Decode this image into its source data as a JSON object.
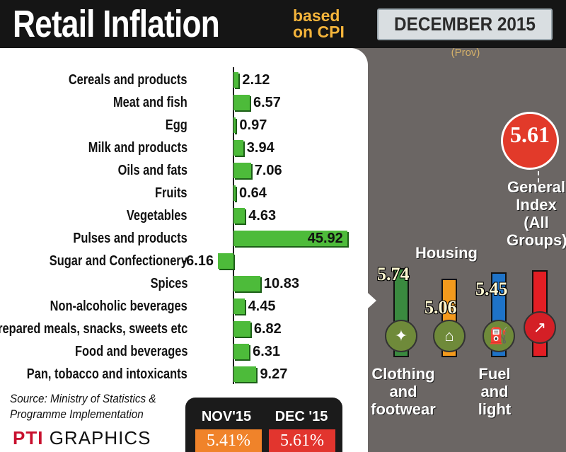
{
  "header": {
    "title": "Retail Inflation",
    "subtitle": "based\non CPI",
    "date": "DECEMBER 2015",
    "prov": "(Prov)"
  },
  "chart_data": [
    {
      "type": "bar",
      "orientation": "horizontal",
      "categories": [
        "Cereals and products",
        "Meat and fish",
        "Egg",
        "Milk and products",
        "Oils and fats",
        "Fruits",
        "Vegetables",
        "Pulses and products",
        "Sugar and Confectionery",
        "Spices",
        "Non-alcoholic beverages",
        "Prepared meals, snacks, sweets etc",
        "Food and beverages",
        "Pan, tobacco and intoxicants"
      ],
      "values": [
        2.12,
        6.57,
        0.97,
        3.94,
        7.06,
        0.64,
        4.63,
        45.92,
        -6.16,
        10.83,
        4.45,
        6.82,
        6.31,
        9.27
      ],
      "value_labels": [
        "2.12",
        "6.57",
        "0.97",
        "3.94",
        "7.06",
        "0.64",
        "4.63",
        "45.92",
        "-6.16",
        "10.83",
        "4.45",
        "6.82",
        "6.31",
        "9.27"
      ],
      "bar_color": "#4dbb3a"
    },
    {
      "type": "bar",
      "orientation": "vertical",
      "categories": [
        "Clothing and footwear",
        "Housing",
        "Fuel and light",
        "General Index (All Groups)"
      ],
      "values": [
        5.74,
        5.06,
        5.45,
        5.61
      ],
      "value_labels": [
        "5.74",
        "5.06",
        "5.45",
        "5.61"
      ],
      "colors": [
        "#3a8a3f",
        "#f39a1d",
        "#1e73c8",
        "#e31e24"
      ]
    }
  ],
  "groups": {
    "clothing": [
      "Clothing",
      "and",
      "footwear"
    ],
    "housing": "Housing",
    "fuel": [
      "Fuel",
      "and",
      "light"
    ],
    "general": [
      "General",
      "Index",
      "(All",
      "Groups)"
    ]
  },
  "source": [
    "Source: Ministry of Statistics &",
    "Programme Implementation"
  ],
  "credit": {
    "logo": "PTI",
    "text": "GRAPHICS"
  },
  "comparison": {
    "nov_label": "NOV'15",
    "nov_value": "5.41%",
    "dec_label": "DEC '15",
    "dec_value": "5.61%",
    "nov_color": "#f0832a",
    "dec_color": "#e2352e"
  }
}
